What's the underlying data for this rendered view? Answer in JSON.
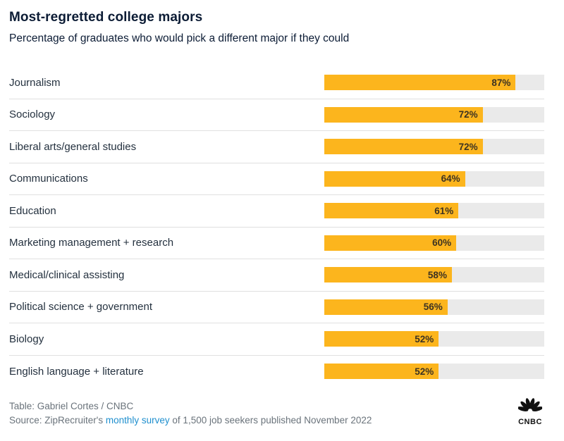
{
  "header": {
    "title": "Most-regretted college majors",
    "subtitle": "Percentage of graduates who would pick a different major if they could"
  },
  "chart_data": {
    "type": "bar",
    "orientation": "horizontal",
    "title": "Most-regretted college majors",
    "subtitle": "Percentage of graduates who would pick a different major if they could",
    "categories": [
      "Journalism",
      "Sociology",
      "Liberal arts/general studies",
      "Communications",
      "Education",
      "Marketing management + research",
      "Medical/clinical assisting",
      "Political science + government",
      "Biology",
      "English language + literature"
    ],
    "values": [
      87,
      72,
      72,
      64,
      61,
      60,
      58,
      56,
      52,
      52
    ],
    "value_suffix": "%",
    "xlim": [
      0,
      100
    ],
    "xlabel": "",
    "ylabel": "",
    "grid": false,
    "legend": false
  },
  "footer": {
    "credit": "Table: Gabriel Cortes / CNBC",
    "source_prefix": "Source: ZipRecruiter's ",
    "source_link": "monthly survey",
    "source_suffix": " of 1,500 job seekers published November 2022",
    "logo_text": "CNBC"
  },
  "colors": {
    "bar_fill": "#FCB51D",
    "bar_track": "#EAEAEA",
    "title_text": "#0C1C35",
    "label_text": "#24313F",
    "value_text": "#3D3322",
    "footer_text": "#6A737B",
    "link": "#1F8FCE",
    "separator": "#E0E0E0"
  }
}
